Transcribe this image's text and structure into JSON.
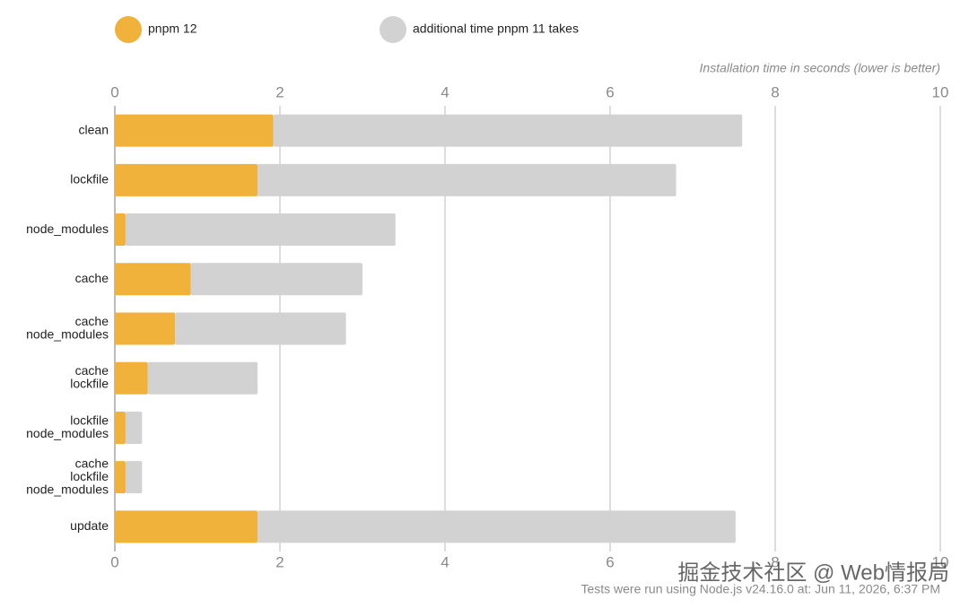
{
  "chart_data": {
    "type": "stacked-barh",
    "axis_label": "Installation time in seconds (lower is better)",
    "footnote": "Tests were run using Node.js v24.16.0 at: Jun 11, 2026, 6:37 PM",
    "watermark": "掘金技术社区 @ Web情报局",
    "categories": [
      [
        "clean"
      ],
      [
        "lockfile"
      ],
      [
        "node_modules"
      ],
      [
        "cache"
      ],
      [
        "cache",
        "node_modules"
      ],
      [
        "cache",
        "lockfile"
      ],
      [
        "lockfile",
        "node_modules"
      ],
      [
        "cache",
        "lockfile",
        "node_modules"
      ],
      [
        "update"
      ]
    ],
    "series": [
      {
        "name": "pnpm 12",
        "color": "#f0b23a",
        "values": [
          1.92,
          1.73,
          0.13,
          0.92,
          0.73,
          0.4,
          0.13,
          0.13,
          1.73
        ]
      },
      {
        "name": "additional time pnpm 11 takes",
        "color": "#d2d2d2",
        "values": [
          5.68,
          5.07,
          3.27,
          2.08,
          2.07,
          1.33,
          0.2,
          0.2,
          5.79
        ]
      }
    ],
    "xlim": [
      0,
      10
    ],
    "xticks": [
      0,
      2,
      4,
      6,
      8,
      10
    ],
    "grid": true
  }
}
